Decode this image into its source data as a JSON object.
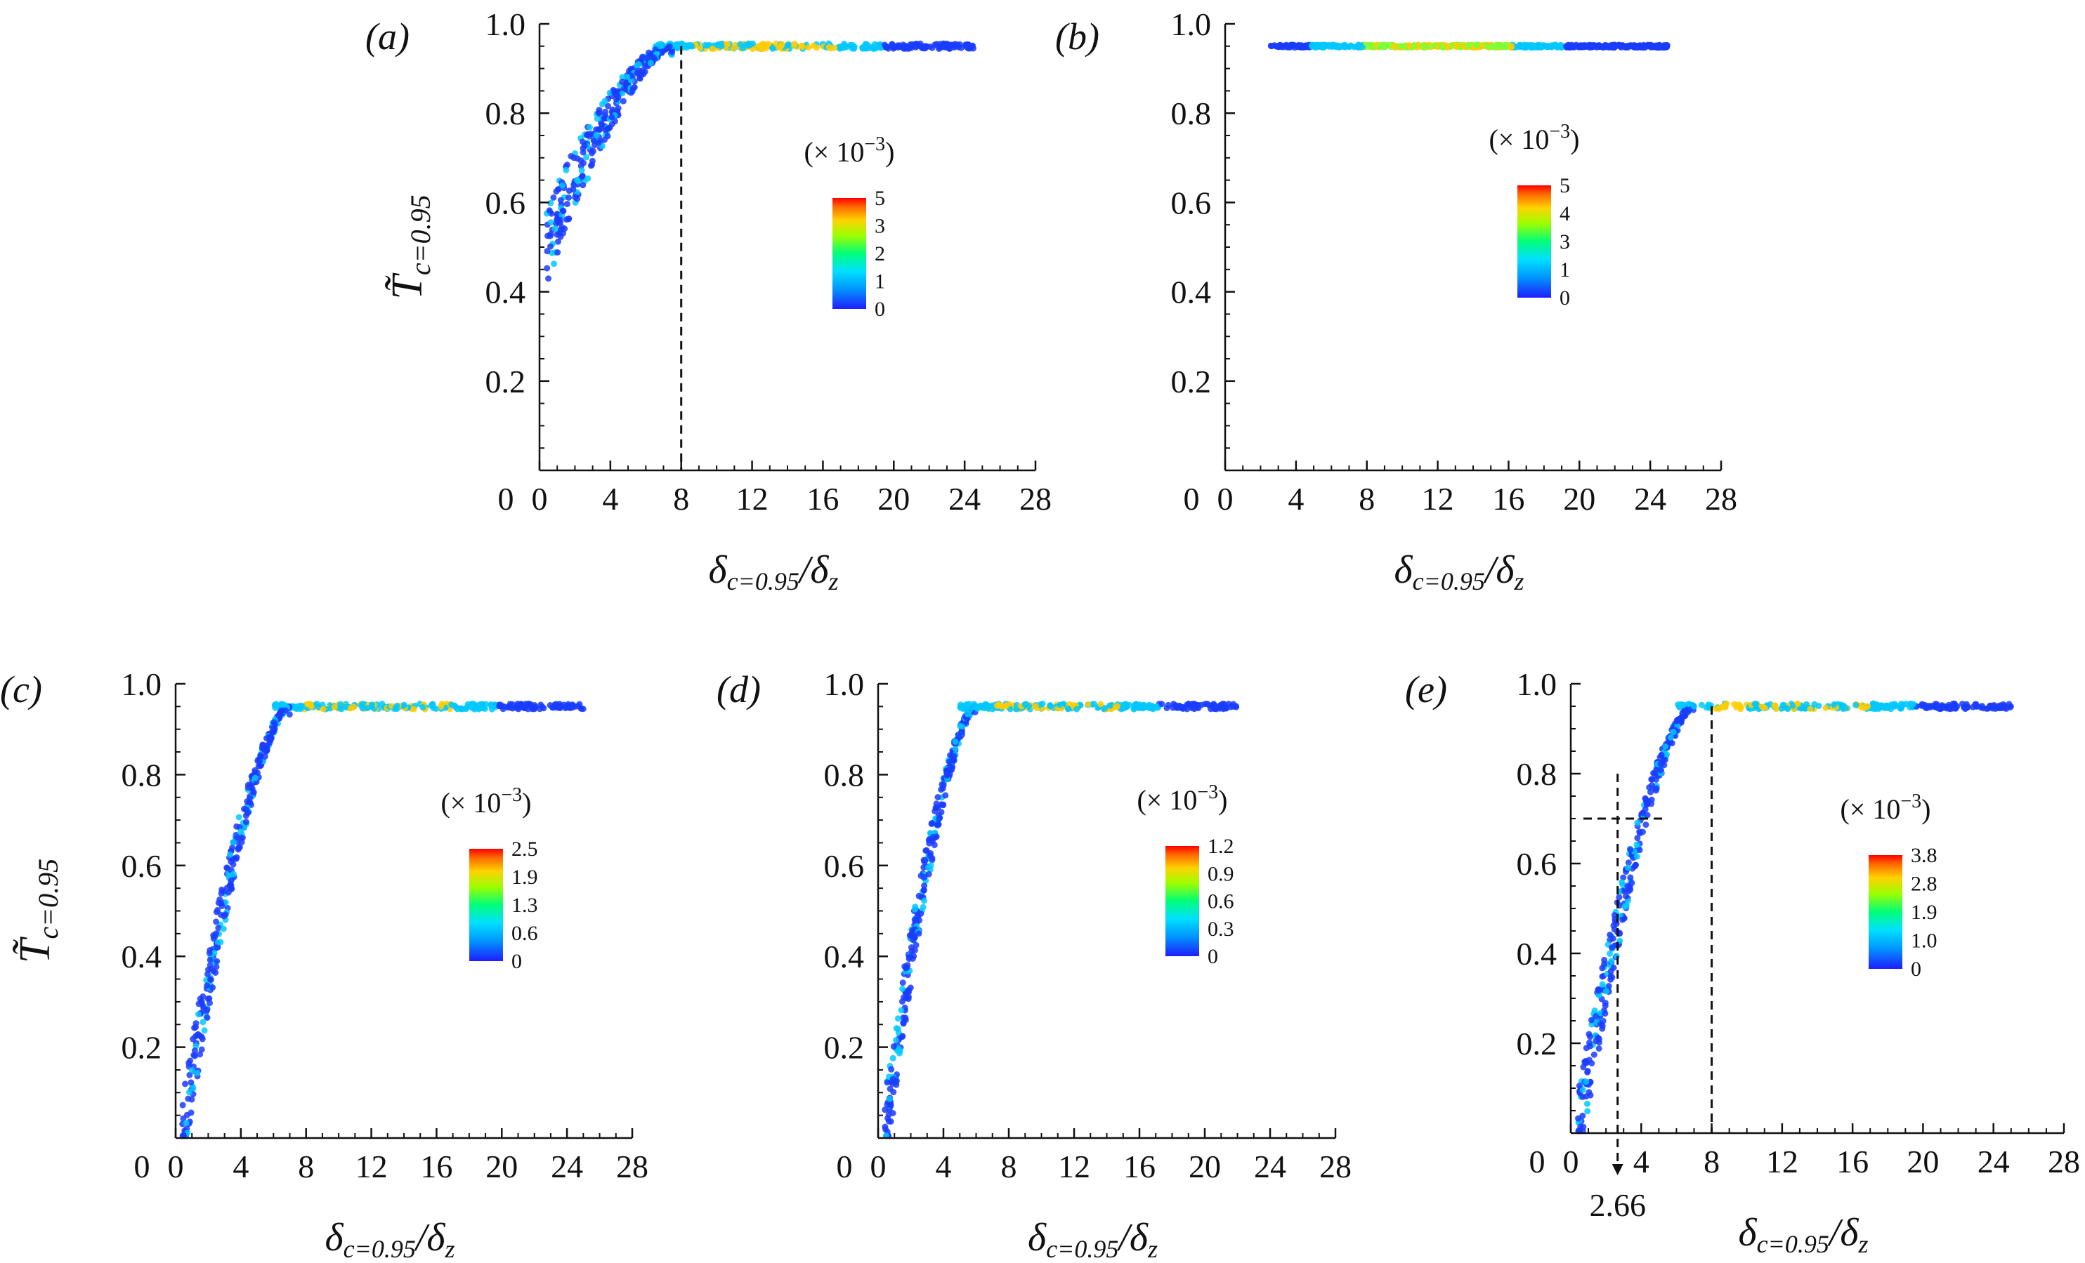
{
  "colors": {
    "axis": "#111111",
    "scatter_low": "#1a3cff",
    "scatter_mid": "#00c8ff",
    "scatter_high": "#ffcc00",
    "colormap": [
      "#1e1eff",
      "#0096ff",
      "#00e0ff",
      "#00ff7a",
      "#9cff00",
      "#ffd200",
      "#ff6a00",
      "#ff0000"
    ]
  },
  "shared": {
    "xlabel": "δc=0.95/δz",
    "xlabel_main": "δ",
    "xlabel_sub1": "c=0.95",
    "xlabel_slash": "/δ",
    "xlabel_sub2": "z",
    "ylabel_main": "T̃",
    "ylabel_sub": "c=0.95",
    "colorbar_title": "(× 10",
    "colorbar_exp": "−3",
    "colorbar_close": ")"
  },
  "chart_data": [
    {
      "panel": "(a)",
      "type": "scatter",
      "title": "",
      "xlabel": "δc=0.95/δz",
      "ylabel": "T̃c=0.95",
      "xlim": [
        0,
        28
      ],
      "ylim": [
        0,
        1.0
      ],
      "xticks": [
        "0",
        "4",
        "8",
        "12",
        "16",
        "20",
        "24",
        "28"
      ],
      "yticks": [
        "0.2",
        "0.4",
        "0.6",
        "0.8",
        "1.0"
      ],
      "colorbar_ticks": [
        "5",
        "3",
        "2",
        "1",
        "0"
      ],
      "curve": {
        "start": 0.5,
        "plateau": 0.95,
        "x_plateau": 7.5,
        "x_end": 24.5
      },
      "vertical_line_x": 8
    },
    {
      "panel": "(b)",
      "type": "scatter",
      "title": "",
      "xlabel": "δc=0.95/δz",
      "ylabel": "",
      "xlim": [
        0,
        28
      ],
      "ylim": [
        0,
        1.0
      ],
      "xticks": [
        "0",
        "4",
        "8",
        "12",
        "16",
        "20",
        "24",
        "28"
      ],
      "yticks": [
        "0.2",
        "0.4",
        "0.6",
        "0.8",
        "1.0"
      ],
      "colorbar_ticks": [
        "5",
        "4",
        "3",
        "1",
        "0"
      ],
      "curve": {
        "start": 0.95,
        "plateau": 0.95,
        "x_start": 2.5,
        "x_end": 25
      }
    },
    {
      "panel": "(c)",
      "type": "scatter",
      "title": "",
      "xlabel": "δc=0.95/δz",
      "ylabel": "T̃c=0.95",
      "xlim": [
        0,
        28
      ],
      "ylim": [
        0,
        1.0
      ],
      "xticks": [
        "0",
        "4",
        "8",
        "12",
        "16",
        "20",
        "24",
        "28"
      ],
      "yticks": [
        "0.2",
        "0.4",
        "0.6",
        "0.8",
        "1.0"
      ],
      "colorbar_ticks": [
        "2.5",
        "1.9",
        "1.3",
        "0.6",
        "0"
      ],
      "curve": {
        "start": 0.0,
        "plateau": 0.95,
        "x_plateau": 7.0,
        "x_end": 25
      }
    },
    {
      "panel": "(d)",
      "type": "scatter",
      "title": "",
      "xlabel": "δc=0.95/δz",
      "ylabel": "",
      "xlim": [
        0,
        28
      ],
      "ylim": [
        0,
        1.0
      ],
      "xticks": [
        "0",
        "4",
        "8",
        "12",
        "16",
        "20",
        "24",
        "28"
      ],
      "yticks": [
        "0.2",
        "0.4",
        "0.6",
        "0.8",
        "1.0"
      ],
      "colorbar_ticks": [
        "1.2",
        "0.9",
        "0.6",
        "0.3",
        "0"
      ],
      "curve": {
        "start": 0.0,
        "plateau": 0.95,
        "x_plateau": 6.0,
        "x_end": 22
      }
    },
    {
      "panel": "(e)",
      "type": "scatter",
      "title": "",
      "xlabel": "δc=0.95/δz",
      "ylabel": "",
      "xlim": [
        0,
        28
      ],
      "ylim": [
        0,
        1.0
      ],
      "xticks": [
        "0",
        "4",
        "8",
        "12",
        "16",
        "20",
        "24",
        "28"
      ],
      "yticks": [
        "0.2",
        "0.4",
        "0.6",
        "0.8",
        "1.0"
      ],
      "colorbar_ticks": [
        "3.8",
        "2.8",
        "1.9",
        "1.0",
        "0"
      ],
      "curve": {
        "start": 0.0,
        "plateau": 0.95,
        "x_plateau": 7.0,
        "x_end": 25
      },
      "vertical_line_x": 8,
      "horizontal_line_y": 0.7,
      "marker_x": 2.66,
      "marker_label": "2.66"
    }
  ]
}
